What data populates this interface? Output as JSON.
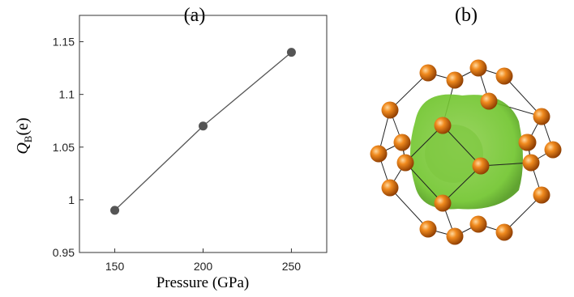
{
  "chart_data": {
    "type": "line",
    "title": "(a)",
    "xlabel": "Pressure (GPa)",
    "ylabel": {
      "symbol": "Q",
      "subscript": "B",
      "argument": "(e)"
    },
    "x": [
      150,
      200,
      250
    ],
    "values": [
      0.99,
      1.07,
      1.14
    ],
    "color": "#555555",
    "xlim": [
      130,
      270
    ],
    "xticks": [
      150,
      200,
      250
    ],
    "ylim": [
      0.95,
      1.175
    ],
    "yticks": [
      0.95,
      1,
      1.05,
      1.1,
      1.15
    ]
  },
  "panel_b": {
    "title": "(b)"
  }
}
